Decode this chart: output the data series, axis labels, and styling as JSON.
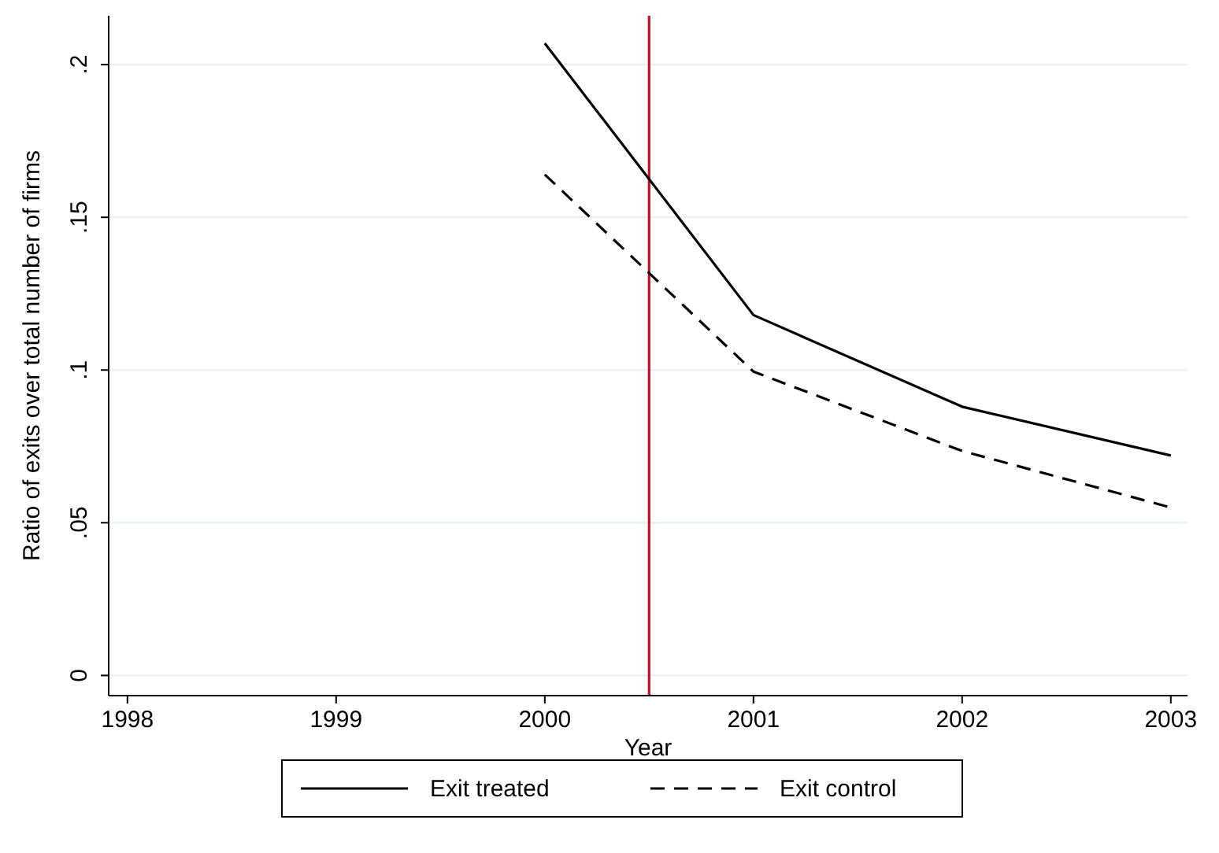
{
  "chart_data": {
    "type": "line",
    "xlabel": "Year",
    "ylabel": "Ratio of exits over total number of firms",
    "x": [
      2000,
      2001,
      2002,
      2003
    ],
    "xlim": [
      1997.91,
      2003.08
    ],
    "xticks": [
      1998,
      1999,
      2000,
      2001,
      2002,
      2003
    ],
    "ylim": [
      -0.0066,
      0.216
    ],
    "yticks": [
      {
        "value": 0,
        "label": "0"
      },
      {
        "value": 0.05,
        "label": ".05"
      },
      {
        "value": 0.1,
        "label": ".1"
      },
      {
        "value": 0.15,
        "label": ".15"
      },
      {
        "value": 0.2,
        "label": ".2"
      }
    ],
    "grid": "y",
    "legend": "bottom",
    "marker": "none",
    "series": [
      {
        "name": "Exit treated",
        "color": "#000000",
        "line_style": "solid",
        "values": [
          0.207,
          0.118,
          0.088,
          0.072
        ]
      },
      {
        "name": "Exit control",
        "color": "#000000",
        "line_style": "dashed",
        "values": [
          0.164,
          0.0995,
          0.0735,
          0.055
        ]
      }
    ],
    "ref_lines": [
      {
        "axis": "x",
        "value": 2000.5,
        "color": "#c8102e"
      }
    ]
  }
}
